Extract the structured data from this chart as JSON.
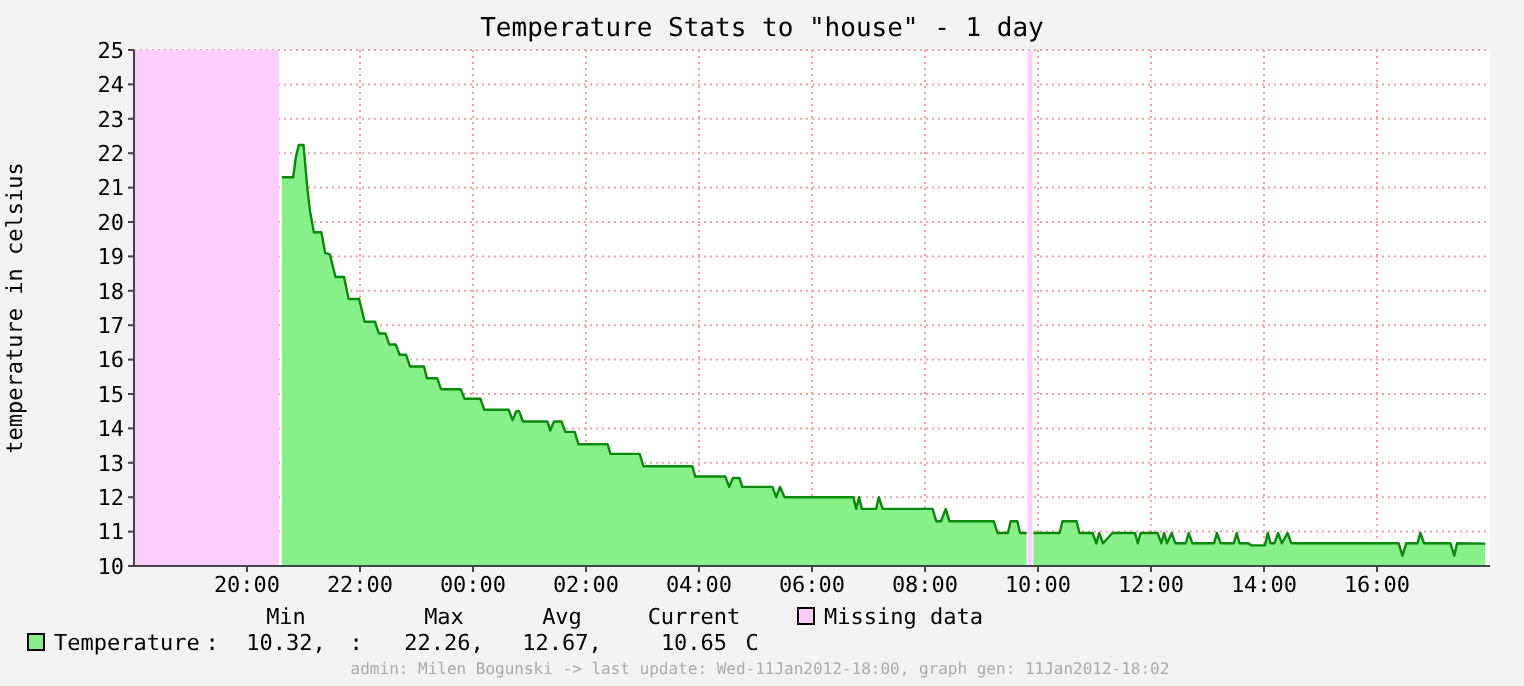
{
  "chart_data": {
    "type": "area",
    "title": "Temperature Stats to \"house\" - 1 day",
    "ylabel": "temperature in celsius",
    "xlim": [
      "2012-01-10T18:00",
      "2012-01-11T18:00"
    ],
    "xticks": [
      {
        "value": "2012-01-10T20:00",
        "label": "20:00"
      },
      {
        "value": "2012-01-10T22:00",
        "label": "22:00"
      },
      {
        "value": "2012-01-11T00:00",
        "label": "00:00"
      },
      {
        "value": "2012-01-11T02:00",
        "label": "02:00"
      },
      {
        "value": "2012-01-11T04:00",
        "label": "04:00"
      },
      {
        "value": "2012-01-11T06:00",
        "label": "06:00"
      },
      {
        "value": "2012-01-11T08:00",
        "label": "08:00"
      },
      {
        "value": "2012-01-11T10:00",
        "label": "10:00"
      },
      {
        "value": "2012-01-11T12:00",
        "label": "12:00"
      },
      {
        "value": "2012-01-11T14:00",
        "label": "14:00"
      },
      {
        "value": "2012-01-11T16:00",
        "label": "16:00"
      }
    ],
    "ylim": [
      10,
      25
    ],
    "yticks": [
      10,
      11,
      12,
      13,
      14,
      15,
      16,
      17,
      18,
      19,
      20,
      21,
      22,
      23,
      24,
      25
    ],
    "grid": true,
    "legend": "bottom",
    "bands": [
      {
        "axis": "x",
        "from": "2012-01-10T18:00",
        "to": "2012-01-10T20:34",
        "label": "Missing data",
        "color": "#ffccff"
      },
      {
        "axis": "x",
        "from": "2012-01-11T09:49",
        "to": "2012-01-11T09:54",
        "color": "#ffccff"
      }
    ],
    "annotations": [
      "Min",
      "Max",
      "Avg",
      "Current",
      ":",
      "10.32,",
      ":",
      "22.26,",
      "12.67,",
      "10.65",
      "C",
      "admin: Milen Bogunski -> last update: Wed-11Jan2012-18:00, graph gen: 11Jan2012-18:02"
    ],
    "series": [
      {
        "name": "Temperature",
        "color": "#88f088",
        "x": [
          "2012-01-10T20:37",
          "2012-01-10T20:49",
          "2012-01-10T20:52",
          "2012-01-10T20:55",
          "2012-01-10T21:00",
          "2012-01-10T21:04",
          "2012-01-10T21:07",
          "2012-01-10T21:11",
          "2012-01-10T21:19",
          "2012-01-10T21:23",
          "2012-01-10T21:28",
          "2012-01-10T21:34",
          "2012-01-10T21:43",
          "2012-01-10T21:48",
          "2012-01-10T21:59",
          "2012-01-10T22:05",
          "2012-01-10T22:16",
          "2012-01-10T22:20",
          "2012-01-10T22:27",
          "2012-01-10T22:31",
          "2012-01-10T22:38",
          "2012-01-10T22:42",
          "2012-01-10T22:49",
          "2012-01-10T22:53",
          "2012-01-10T23:08",
          "2012-01-10T23:11",
          "2012-01-10T23:22",
          "2012-01-10T23:26",
          "2012-01-10T23:47",
          "2012-01-10T23:51",
          "2012-01-11T00:08",
          "2012-01-11T00:12",
          "2012-01-11T00:38",
          "2012-01-11T00:42",
          "2012-01-11T00:46",
          "2012-01-11T00:49",
          "2012-01-11T00:53",
          "2012-01-11T01:19",
          "2012-01-11T01:22",
          "2012-01-11T01:26",
          "2012-01-11T01:34",
          "2012-01-11T01:38",
          "2012-01-11T01:48",
          "2012-01-11T01:52",
          "2012-01-11T02:23",
          "2012-01-11T02:26",
          "2012-01-11T02:57",
          "2012-01-11T03:01",
          "2012-01-11T03:53",
          "2012-01-11T03:56",
          "2012-01-11T04:28",
          "2012-01-11T04:32",
          "2012-01-11T04:36",
          "2012-01-11T04:43",
          "2012-01-11T04:46",
          "2012-01-11T05:18",
          "2012-01-11T05:22",
          "2012-01-11T05:26",
          "2012-01-11T05:31",
          "2012-01-11T06:44",
          "2012-01-11T06:47",
          "2012-01-11T06:50",
          "2012-01-11T06:53",
          "2012-01-11T07:08",
          "2012-01-11T07:11",
          "2012-01-11T07:15",
          "2012-01-11T08:08",
          "2012-01-11T08:12",
          "2012-01-11T08:17",
          "2012-01-11T08:22",
          "2012-01-11T08:26",
          "2012-01-11T09:13",
          "2012-01-11T09:17",
          "2012-01-11T09:28",
          "2012-01-11T09:31",
          "2012-01-11T09:38",
          "2012-01-11T09:41",
          "2012-01-11T09:48",
          "2012-01-11T09:52",
          "2012-01-11T09:55",
          "2012-01-11T10:23",
          "2012-01-11T10:26",
          "2012-01-11T10:41",
          "2012-01-11T10:44",
          "2012-01-11T10:58",
          "2012-01-11T11:02",
          "2012-01-11T11:05",
          "2012-01-11T11:09",
          "2012-01-11T11:19",
          "2012-01-11T11:43",
          "2012-01-11T11:46",
          "2012-01-11T11:49",
          "2012-01-11T12:07",
          "2012-01-11T12:11",
          "2012-01-11T12:14",
          "2012-01-11T12:17",
          "2012-01-11T12:22",
          "2012-01-11T12:26",
          "2012-01-11T12:37",
          "2012-01-11T12:40",
          "2012-01-11T12:44",
          "2012-01-11T13:07",
          "2012-01-11T13:10",
          "2012-01-11T13:14",
          "2012-01-11T13:28",
          "2012-01-11T13:31",
          "2012-01-11T13:34",
          "2012-01-11T13:43",
          "2012-01-11T13:47",
          "2012-01-11T14:01",
          "2012-01-11T14:04",
          "2012-01-11T14:07",
          "2012-01-11T14:11",
          "2012-01-11T14:15",
          "2012-01-11T14:19",
          "2012-01-11T14:25",
          "2012-01-11T14:29",
          "2012-01-11T16:23",
          "2012-01-11T16:27",
          "2012-01-11T16:31",
          "2012-01-11T16:43",
          "2012-01-11T16:46",
          "2012-01-11T16:50",
          "2012-01-11T17:18",
          "2012-01-11T17:22",
          "2012-01-11T17:25",
          "2012-01-11T17:55"
        ],
        "values": [
          21.3,
          21.3,
          21.9,
          22.24,
          22.24,
          21.0,
          20.3,
          19.7,
          19.7,
          19.1,
          19.06,
          18.4,
          18.4,
          17.76,
          17.76,
          17.1,
          17.1,
          16.76,
          16.76,
          16.44,
          16.44,
          16.14,
          16.14,
          15.8,
          15.8,
          15.46,
          15.46,
          15.14,
          15.14,
          14.86,
          14.86,
          14.54,
          14.54,
          14.24,
          14.5,
          14.5,
          14.2,
          14.2,
          13.94,
          14.2,
          14.2,
          13.9,
          13.9,
          13.54,
          13.54,
          13.26,
          13.26,
          12.9,
          12.9,
          12.6,
          12.6,
          12.3,
          12.56,
          12.56,
          12.3,
          12.3,
          12.0,
          12.3,
          12.0,
          12.0,
          11.66,
          12.0,
          11.66,
          11.66,
          12.0,
          11.66,
          11.66,
          11.3,
          11.3,
          11.66,
          11.3,
          11.3,
          10.96,
          10.96,
          11.3,
          11.3,
          10.96,
          10.96,
          null,
          10.96,
          10.96,
          11.3,
          11.3,
          10.96,
          10.96,
          10.66,
          10.96,
          10.66,
          10.96,
          10.96,
          10.66,
          10.96,
          10.96,
          10.66,
          10.96,
          10.66,
          10.96,
          10.66,
          10.66,
          10.96,
          10.66,
          10.66,
          10.96,
          10.66,
          10.66,
          10.96,
          10.66,
          10.66,
          10.6,
          10.6,
          10.96,
          10.66,
          10.66,
          10.96,
          10.66,
          10.96,
          10.66,
          10.66,
          10.3,
          10.66,
          10.66,
          10.96,
          10.66,
          10.66,
          10.3,
          10.66,
          10.65
        ]
      }
    ]
  }
}
